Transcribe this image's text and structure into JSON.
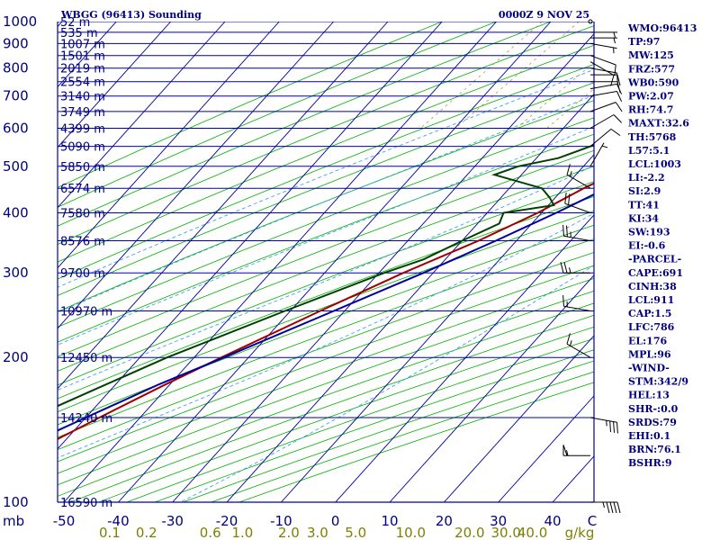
{
  "chart_data": {
    "type": "skew-t",
    "title_left": "WBGG (96413) Sounding",
    "title_right": "0000Z  9 NOV 25",
    "pressure_axis": {
      "unit_label": "mb",
      "ticks": [
        100,
        200,
        300,
        400,
        500,
        600,
        700,
        800,
        900,
        1000
      ]
    },
    "temperature_axis": {
      "ticks": [
        -50,
        -40,
        -30,
        -20,
        -10,
        0,
        10,
        20,
        30,
        40
      ],
      "end_label": "C"
    },
    "mixing_ratio_axis": {
      "ticks": [
        "0.1",
        "0.2",
        "0.6",
        "1.0",
        "2.0",
        "3.0",
        "5.0",
        "10.0",
        "20.0",
        "30.0",
        "40.0"
      ],
      "unit_label": "g/kg"
    },
    "height_levels": [
      {
        "p": 100,
        "label": "16590 m"
      },
      {
        "p": 150,
        "label": "14240 m"
      },
      {
        "p": 200,
        "label": "12450 m"
      },
      {
        "p": 250,
        "label": "10970 m"
      },
      {
        "p": 300,
        "label": "9700 m"
      },
      {
        "p": 350,
        "label": "8576 m"
      },
      {
        "p": 400,
        "label": "7580 m"
      },
      {
        "p": 450,
        "label": "6574 m"
      },
      {
        "p": 500,
        "label": "5850 m"
      },
      {
        "p": 550,
        "label": "5090 m"
      },
      {
        "p": 600,
        "label": "4399 m"
      },
      {
        "p": 650,
        "label": "3749 m"
      },
      {
        "p": 700,
        "label": "3140 m"
      },
      {
        "p": 750,
        "label": "2554 m"
      },
      {
        "p": 800,
        "label": "2019 m"
      },
      {
        "p": 850,
        "label": "1501 m"
      },
      {
        "p": 900,
        "label": "1007 m"
      },
      {
        "p": 950,
        "label": "535 m"
      },
      {
        "p": 1000,
        "label": "52 m"
      }
    ],
    "series": [
      {
        "name": "temperature",
        "color": "#a00000",
        "points": [
          [
            1000,
            26.5
          ],
          [
            975,
            24.5
          ],
          [
            950,
            23.0
          ],
          [
            925,
            22.0
          ],
          [
            900,
            21.3
          ],
          [
            850,
            20.0
          ],
          [
            800,
            18.2
          ],
          [
            750,
            15.2
          ],
          [
            700,
            12.2
          ],
          [
            650,
            9.2
          ],
          [
            600,
            6.0
          ],
          [
            550,
            2.6
          ],
          [
            500,
            -1.5
          ],
          [
            450,
            -6.3
          ],
          [
            400,
            -10.7
          ],
          [
            350,
            -17.0
          ],
          [
            300,
            -25.5
          ],
          [
            250,
            -34.5
          ],
          [
            200,
            -45.0
          ],
          [
            175,
            -51.0
          ],
          [
            150,
            -57.5
          ],
          [
            125,
            -64.8
          ],
          [
            110,
            -65.0
          ],
          [
            100,
            -64.5
          ]
        ]
      },
      {
        "name": "dewpoint",
        "color": "#004000",
        "points": [
          [
            1000,
            23.0
          ],
          [
            975,
            22.0
          ],
          [
            950,
            19.0
          ],
          [
            925,
            18.0
          ],
          [
            900,
            15.0
          ],
          [
            850,
            12.0
          ],
          [
            800,
            8.0
          ],
          [
            750,
            8.0
          ],
          [
            700,
            4.0
          ],
          [
            650,
            -1.0
          ],
          [
            600,
            -6.0
          ],
          [
            550,
            -12.0
          ],
          [
            520,
            -16.0
          ],
          [
            500,
            -22.0
          ],
          [
            480,
            -25.0
          ],
          [
            450,
            -14.0
          ],
          [
            430,
            -11.0
          ],
          [
            415,
            -9.0
          ],
          [
            400,
            -17.0
          ],
          [
            380,
            -16.0
          ],
          [
            350,
            -20.0
          ],
          [
            320,
            -24.0
          ],
          [
            300,
            -29.0
          ],
          [
            250,
            -41.0
          ],
          [
            200,
            -55.0
          ],
          [
            175,
            -62.0
          ],
          [
            150,
            -70.0
          ],
          [
            135,
            -76.0
          ],
          [
            128,
            -80.0
          ],
          [
            120,
            -82.0
          ],
          [
            110,
            -80.0
          ],
          [
            100,
            -77.0
          ]
        ]
      },
      {
        "name": "parcel",
        "color": "#0000a0",
        "points": [
          [
            1000,
            26.5
          ],
          [
            960,
            25.0
          ],
          [
            911,
            22.0
          ],
          [
            850,
            19.8
          ],
          [
            800,
            17.8
          ],
          [
            700,
            13.4
          ],
          [
            600,
            8.4
          ],
          [
            500,
            2.1
          ],
          [
            450,
            -2.1
          ],
          [
            400,
            -7.3
          ],
          [
            350,
            -13.8
          ],
          [
            300,
            -21.8
          ],
          [
            250,
            -32.0
          ],
          [
            200,
            -44.5
          ],
          [
            176,
            -52.0
          ],
          [
            150,
            -60.0
          ],
          [
            125,
            -69.0
          ],
          [
            110,
            -75.0
          ],
          [
            100,
            -79.0
          ]
        ]
      }
    ],
    "wind_barbs": [
      {
        "p": 1000,
        "dir": 0,
        "kt": 0
      },
      {
        "p": 950,
        "dir": 90,
        "kt": 3
      },
      {
        "p": 925,
        "dir": 90,
        "kt": 5
      },
      {
        "p": 900,
        "dir": 100,
        "kt": 5
      },
      {
        "p": 850,
        "dir": 110,
        "kt": 8
      },
      {
        "p": 825,
        "dir": 120,
        "kt": 9
      },
      {
        "p": 800,
        "dir": 100,
        "kt": 10
      },
      {
        "p": 775,
        "dir": 90,
        "kt": 11
      },
      {
        "p": 750,
        "dir": 90,
        "kt": 11
      },
      {
        "p": 725,
        "dir": 80,
        "kt": 10
      },
      {
        "p": 700,
        "dir": 80,
        "kt": 10
      },
      {
        "p": 650,
        "dir": 70,
        "kt": 10
      },
      {
        "p": 600,
        "dir": 60,
        "kt": 9
      },
      {
        "p": 550,
        "dir": 50,
        "kt": 8
      },
      {
        "p": 500,
        "dir": 30,
        "kt": 7
      },
      {
        "p": 450,
        "dir": 300,
        "kt": 15
      },
      {
        "p": 400,
        "dir": 290,
        "kt": 22
      },
      {
        "p": 350,
        "dir": 280,
        "kt": 25
      },
      {
        "p": 300,
        "dir": 270,
        "kt": 25
      },
      {
        "p": 250,
        "dir": 280,
        "kt": 15
      },
      {
        "p": 200,
        "dir": 300,
        "kt": 15
      },
      {
        "p": 150,
        "dir": 100,
        "kt": 35
      },
      {
        "p": 125,
        "dir": 270,
        "kt": 55
      },
      {
        "p": 100,
        "dir": 90,
        "kt": 45
      }
    ],
    "indices": [
      "WMO:96413",
      "TP:97",
      "MW:125",
      "FRZ:577",
      "WB0:590",
      "PW:2.07",
      "RH:74.7",
      "MAXT:32.6",
      "TH:5768",
      "L57:5.1",
      "LCL:1003",
      "LI:-2.2",
      "SI:2.9",
      "TT:41",
      "KI:34",
      "SW:193",
      "EI:-0.6",
      "-PARCEL-",
      "CAPE:691",
      "CINH:38",
      "LCL:911",
      "CAP:1.5",
      "LFC:786",
      "EL:176",
      "MPL:96",
      "-WIND-",
      "STM:342/9",
      "HEL:13",
      "SHR-:0.0",
      "SRDS:79",
      "EHI:0.1",
      "BRN:76.1",
      "BSHR:9"
    ]
  }
}
